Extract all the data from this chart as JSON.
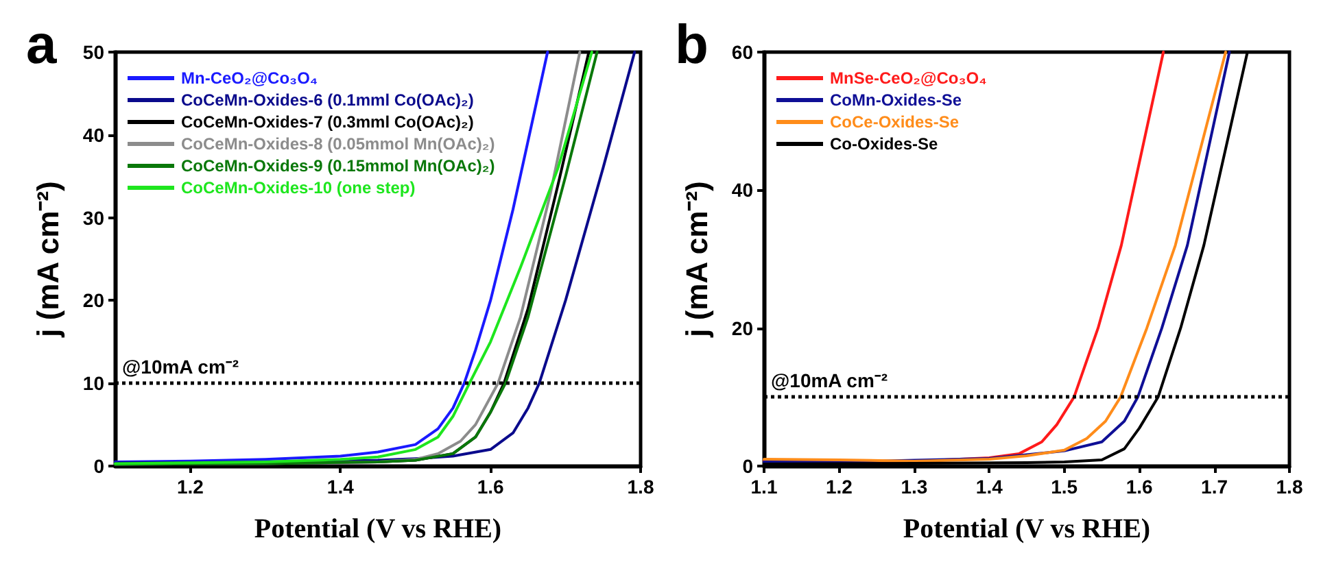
{
  "chart_data": [
    {
      "type": "line",
      "title": "a",
      "xlabel": "Potential (V vs RHE)",
      "ylabel": "j (mA cm⁻²)",
      "xlim": [
        1.1,
        1.8
      ],
      "xticks": [
        1.2,
        1.4,
        1.6,
        1.8
      ],
      "ylim": [
        0,
        50
      ],
      "yticks": [
        0,
        10,
        20,
        30,
        40,
        50
      ],
      "legend": "top left",
      "grid": false,
      "line_style": "solid",
      "ref_lines": [
        {
          "axis": "y",
          "value": 10,
          "label": "@10mA cm⁻²",
          "line_style": "dotted",
          "color": "#000000"
        }
      ],
      "series": [
        {
          "name": "Mn-CeO₂@Co₃O₄",
          "color": "#1a1aff",
          "x": [
            1.1,
            1.2,
            1.3,
            1.4,
            1.45,
            1.5,
            1.53,
            1.55,
            1.565,
            1.58,
            1.6,
            1.63,
            1.676
          ],
          "values": [
            0.5,
            0.6,
            0.8,
            1.2,
            1.7,
            2.6,
            4.5,
            7,
            10,
            14,
            20,
            31,
            50
          ]
        },
        {
          "name": "CoCeMn-Oxides-6 (0.1mml Co(OAc)₂)",
          "color": "#0a0a8c",
          "x": [
            1.1,
            1.3,
            1.45,
            1.5,
            1.55,
            1.6,
            1.63,
            1.65,
            1.665,
            1.7,
            1.75,
            1.792
          ],
          "values": [
            0.4,
            0.5,
            0.7,
            0.9,
            1.2,
            2,
            4,
            7,
            10,
            20,
            36,
            50
          ]
        },
        {
          "name": "CoCeMn-Oxides-7 (0.3mml Co(OAc)₂)",
          "color": "#000000",
          "x": [
            1.1,
            1.3,
            1.45,
            1.5,
            1.55,
            1.58,
            1.6,
            1.618,
            1.65,
            1.69,
            1.731
          ],
          "values": [
            0.2,
            0.3,
            0.5,
            0.7,
            1.5,
            3.5,
            6.5,
            10,
            19,
            34,
            50
          ]
        },
        {
          "name": "CoCeMn-Oxides-8 (0.05mmol Mn(OAc)₂)",
          "color": "#8c8c8c",
          "x": [
            1.1,
            1.3,
            1.45,
            1.5,
            1.53,
            1.56,
            1.58,
            1.61,
            1.64,
            1.68,
            1.719
          ],
          "values": [
            0.2,
            0.3,
            0.5,
            0.8,
            1.5,
            3,
            5,
            10,
            18,
            33,
            50
          ]
        },
        {
          "name": "CoCeMn-Oxides-9 (0.15mmol Mn(OAc)₂)",
          "color": "#0a780a",
          "x": [
            1.1,
            1.3,
            1.45,
            1.5,
            1.55,
            1.58,
            1.6,
            1.62,
            1.65,
            1.7,
            1.742
          ],
          "values": [
            0.2,
            0.3,
            0.5,
            0.7,
            1.5,
            3.5,
            6.5,
            10,
            18,
            35,
            50
          ]
        },
        {
          "name": "CoCeMn-Oxides-10 (one step)",
          "color": "#1ee61e",
          "x": [
            1.1,
            1.2,
            1.3,
            1.4,
            1.45,
            1.5,
            1.53,
            1.55,
            1.572,
            1.6,
            1.64,
            1.69,
            1.735
          ],
          "values": [
            0.3,
            0.4,
            0.5,
            0.8,
            1.1,
            2,
            3.5,
            6,
            10,
            15,
            24,
            36,
            50
          ]
        }
      ]
    },
    {
      "type": "line",
      "title": "b",
      "xlabel": "Potential (V vs RHE)",
      "ylabel": "j (mA cm⁻²)",
      "xlim": [
        1.1,
        1.8
      ],
      "xticks": [
        1.1,
        1.2,
        1.3,
        1.4,
        1.5,
        1.6,
        1.7,
        1.8
      ],
      "ylim": [
        0,
        60
      ],
      "yticks": [
        0,
        20,
        40,
        60
      ],
      "legend": "top left",
      "grid": false,
      "line_style": "solid",
      "ref_lines": [
        {
          "axis": "y",
          "value": 10,
          "label": "@10mA cm⁻²",
          "line_style": "dotted",
          "color": "#000000"
        }
      ],
      "series": [
        {
          "name": "MnSe-CeO₂@Co₃O₄",
          "color": "#ff1a1a",
          "x": [
            1.1,
            1.2,
            1.3,
            1.4,
            1.44,
            1.47,
            1.49,
            1.513,
            1.545,
            1.576,
            1.632
          ],
          "values": [
            0.8,
            0.7,
            0.7,
            1.2,
            1.8,
            3.5,
            6,
            10,
            20,
            32,
            60
          ]
        },
        {
          "name": "CoMn-Oxides-Se",
          "color": "#0f0f96",
          "x": [
            1.1,
            1.2,
            1.3,
            1.4,
            1.45,
            1.5,
            1.55,
            1.58,
            1.598,
            1.63,
            1.664,
            1.72
          ],
          "values": [
            0.6,
            0.6,
            null,
            1.1,
            null,
            2.2,
            3.5,
            6.5,
            10,
            20,
            32,
            60
          ]
        },
        {
          "name": "CoCe-Oxides-Se",
          "color": "#ff8c1a",
          "x": [
            1.1,
            1.2,
            1.3,
            1.4,
            1.45,
            1.5,
            1.53,
            1.555,
            1.575,
            1.61,
            1.648,
            1.715
          ],
          "values": [
            1,
            0.9,
            0.7,
            1,
            1.5,
            2.3,
            4,
            6.5,
            10,
            20,
            32,
            60
          ]
        },
        {
          "name": "Co-Oxides-Se",
          "color": "#000000",
          "x": [
            1.1,
            1.3,
            1.45,
            1.5,
            1.55,
            1.58,
            1.6,
            1.625,
            1.655,
            1.686,
            1.744
          ],
          "values": [
            0.3,
            0.4,
            0.5,
            0.6,
            0.9,
            2.5,
            5.5,
            10,
            20,
            32,
            60
          ]
        }
      ]
    }
  ]
}
